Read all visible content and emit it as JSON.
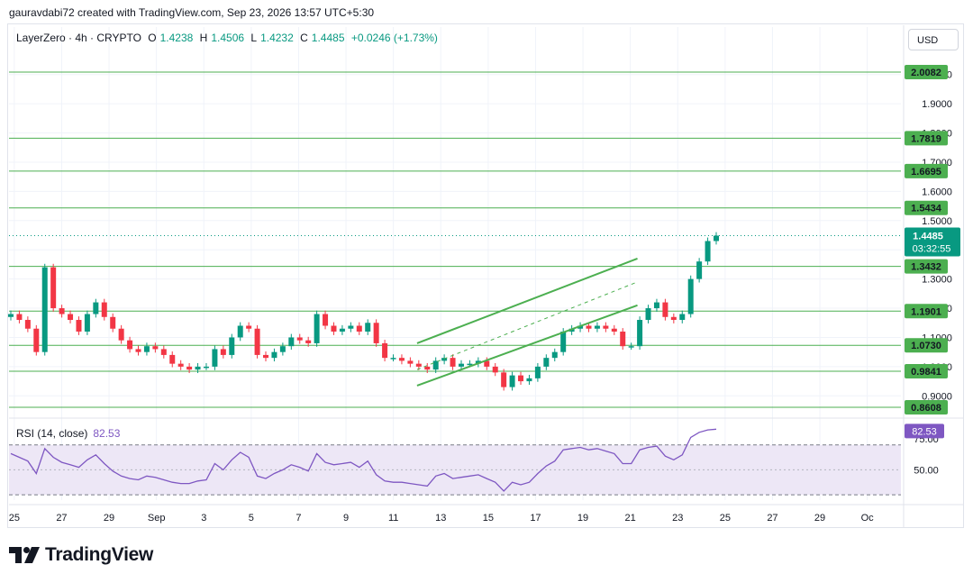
{
  "header": {
    "attribution": "gauravdabi72 created with TradingView.com, Sep 23, 2026 13:57 UTC+5:30"
  },
  "legend": {
    "symbol": "LayerZero · 4h · CRYPTO",
    "open_label": "O",
    "open": "1.4238",
    "high_label": "H",
    "high": "1.4506",
    "low_label": "L",
    "low": "1.4232",
    "close_label": "C",
    "close": "1.4485",
    "change": "+0.0246 (+1.73%)"
  },
  "currency_button": "USD",
  "rsi_legend": {
    "label": "RSI (14, close)",
    "value": "82.53"
  },
  "brand": {
    "name": "TradingView"
  },
  "colors": {
    "up": "#089981",
    "down": "#f23645",
    "level_line": "#4caf50",
    "level_badge": "#4caf50",
    "channel": "#4caf50",
    "rsi_line": "#7e57c2",
    "rsi_band": "#ede7f6",
    "price_badge": "#089981"
  },
  "chart_data": [
    {
      "type": "candlestick",
      "interval": "4h",
      "symbol": "LayerZero",
      "current_price": 1.4485,
      "countdown": "03:32:55",
      "ylim": [
        0.83,
        2.07
      ],
      "y_ticks": [
        "2.0000",
        "1.9000",
        "1.8000",
        "1.7000",
        "1.6000",
        "1.5000",
        "1.4000",
        "1.3000",
        "1.2000",
        "1.1000",
        "1.0000",
        "0.9000"
      ],
      "x_ticks": [
        "25",
        "27",
        "29",
        "Sep",
        "3",
        "5",
        "7",
        "9",
        "11",
        "13",
        "15",
        "17",
        "19",
        "21",
        "23",
        "25",
        "27",
        "29",
        "Oc"
      ],
      "horizontal_levels": [
        "2.0082",
        "1.7819",
        "1.6695",
        "1.5434",
        "1.3432",
        "1.1901",
        "1.0730",
        "0.9841",
        "0.8608"
      ],
      "close_path": [
        [
          0,
          1.18
        ],
        [
          1,
          1.16
        ],
        [
          2,
          1.13
        ],
        [
          3,
          1.05
        ],
        [
          4,
          1.34
        ],
        [
          5,
          1.2
        ],
        [
          6,
          1.18
        ],
        [
          7,
          1.16
        ],
        [
          8,
          1.12
        ],
        [
          9,
          1.18
        ],
        [
          10,
          1.22
        ],
        [
          11,
          1.17
        ],
        [
          12,
          1.13
        ],
        [
          13,
          1.09
        ],
        [
          14,
          1.06
        ],
        [
          15,
          1.05
        ],
        [
          16,
          1.07
        ],
        [
          17,
          1.06
        ],
        [
          18,
          1.04
        ],
        [
          19,
          1.01
        ],
        [
          20,
          1.0
        ],
        [
          21,
          0.99
        ],
        [
          22,
          1.0
        ],
        [
          23,
          1.0
        ],
        [
          24,
          1.06
        ],
        [
          25,
          1.04
        ],
        [
          26,
          1.1
        ],
        [
          27,
          1.14
        ],
        [
          28,
          1.13
        ],
        [
          29,
          1.04
        ],
        [
          30,
          1.03
        ],
        [
          31,
          1.05
        ],
        [
          32,
          1.07
        ],
        [
          33,
          1.1
        ],
        [
          34,
          1.09
        ],
        [
          35,
          1.08
        ],
        [
          36,
          1.18
        ],
        [
          37,
          1.14
        ],
        [
          38,
          1.12
        ],
        [
          39,
          1.13
        ],
        [
          40,
          1.14
        ],
        [
          41,
          1.12
        ],
        [
          42,
          1.15
        ],
        [
          43,
          1.08
        ],
        [
          44,
          1.03
        ],
        [
          45,
          1.03
        ],
        [
          46,
          1.02
        ],
        [
          47,
          1.01
        ],
        [
          48,
          1.0
        ],
        [
          49,
          0.99
        ],
        [
          50,
          1.02
        ],
        [
          51,
          1.03
        ],
        [
          52,
          1.0
        ],
        [
          53,
          1.01
        ],
        [
          54,
          1.01
        ],
        [
          55,
          1.02
        ],
        [
          56,
          1.0
        ],
        [
          57,
          0.98
        ],
        [
          58,
          0.93
        ],
        [
          59,
          0.97
        ],
        [
          60,
          0.95
        ],
        [
          61,
          0.96
        ],
        [
          62,
          1.0
        ],
        [
          63,
          1.03
        ],
        [
          64,
          1.05
        ],
        [
          65,
          1.12
        ],
        [
          66,
          1.13
        ],
        [
          67,
          1.14
        ],
        [
          68,
          1.13
        ],
        [
          69,
          1.14
        ],
        [
          70,
          1.13
        ],
        [
          71,
          1.12
        ],
        [
          72,
          1.07
        ],
        [
          73,
          1.07
        ],
        [
          74,
          1.16
        ],
        [
          75,
          1.2
        ],
        [
          76,
          1.22
        ],
        [
          77,
          1.17
        ],
        [
          78,
          1.16
        ],
        [
          79,
          1.18
        ],
        [
          80,
          1.3
        ],
        [
          81,
          1.36
        ],
        [
          82,
          1.43
        ],
        [
          83,
          1.4485
        ]
      ],
      "channel": {
        "upper": [
          [
            17.0,
            1.08
          ],
          [
            26.3,
            1.37
          ]
        ],
        "middle": [
          [
            17.0,
            0.99
          ],
          [
            26.3,
            1.29
          ]
        ],
        "lower": [
          [
            17.0,
            0.935
          ],
          [
            26.3,
            1.21
          ]
        ]
      }
    },
    {
      "type": "line",
      "name": "RSI (14, close)",
      "ylim": [
        25,
        90
      ],
      "y_ticks": [
        "75.00",
        "50.00"
      ],
      "bands": [
        70,
        30
      ],
      "current": 82.53,
      "values": [
        [
          0,
          63
        ],
        [
          1,
          60
        ],
        [
          2,
          57
        ],
        [
          3,
          47
        ],
        [
          4,
          67
        ],
        [
          5,
          60
        ],
        [
          6,
          56
        ],
        [
          7,
          54
        ],
        [
          8,
          52
        ],
        [
          9,
          58
        ],
        [
          10,
          62
        ],
        [
          11,
          55
        ],
        [
          12,
          49
        ],
        [
          13,
          45
        ],
        [
          14,
          43
        ],
        [
          15,
          42
        ],
        [
          16,
          45
        ],
        [
          17,
          44
        ],
        [
          18,
          42
        ],
        [
          19,
          40
        ],
        [
          20,
          39
        ],
        [
          21,
          39
        ],
        [
          22,
          41
        ],
        [
          23,
          42
        ],
        [
          24,
          55
        ],
        [
          25,
          50
        ],
        [
          26,
          58
        ],
        [
          27,
          64
        ],
        [
          28,
          60
        ],
        [
          29,
          45
        ],
        [
          30,
          43
        ],
        [
          31,
          47
        ],
        [
          32,
          50
        ],
        [
          33,
          54
        ],
        [
          34,
          52
        ],
        [
          35,
          49
        ],
        [
          36,
          63
        ],
        [
          37,
          56
        ],
        [
          38,
          54
        ],
        [
          39,
          55
        ],
        [
          40,
          56
        ],
        [
          41,
          52
        ],
        [
          42,
          57
        ],
        [
          43,
          46
        ],
        [
          44,
          41
        ],
        [
          45,
          40
        ],
        [
          46,
          40
        ],
        [
          47,
          39
        ],
        [
          48,
          38
        ],
        [
          49,
          37
        ],
        [
          50,
          45
        ],
        [
          51,
          47
        ],
        [
          52,
          43
        ],
        [
          53,
          44
        ],
        [
          54,
          45
        ],
        [
          55,
          46
        ],
        [
          56,
          43
        ],
        [
          57,
          40
        ],
        [
          58,
          33
        ],
        [
          59,
          40
        ],
        [
          60,
          38
        ],
        [
          61,
          40
        ],
        [
          62,
          47
        ],
        [
          63,
          53
        ],
        [
          64,
          57
        ],
        [
          65,
          66
        ],
        [
          66,
          67
        ],
        [
          67,
          68
        ],
        [
          68,
          66
        ],
        [
          69,
          67
        ],
        [
          70,
          65
        ],
        [
          71,
          63
        ],
        [
          72,
          55
        ],
        [
          73,
          55
        ],
        [
          74,
          66
        ],
        [
          75,
          68
        ],
        [
          76,
          69
        ],
        [
          77,
          61
        ],
        [
          78,
          58
        ],
        [
          79,
          62
        ],
        [
          80,
          76
        ],
        [
          81,
          80
        ],
        [
          82,
          82
        ],
        [
          83,
          82.53
        ]
      ]
    }
  ]
}
